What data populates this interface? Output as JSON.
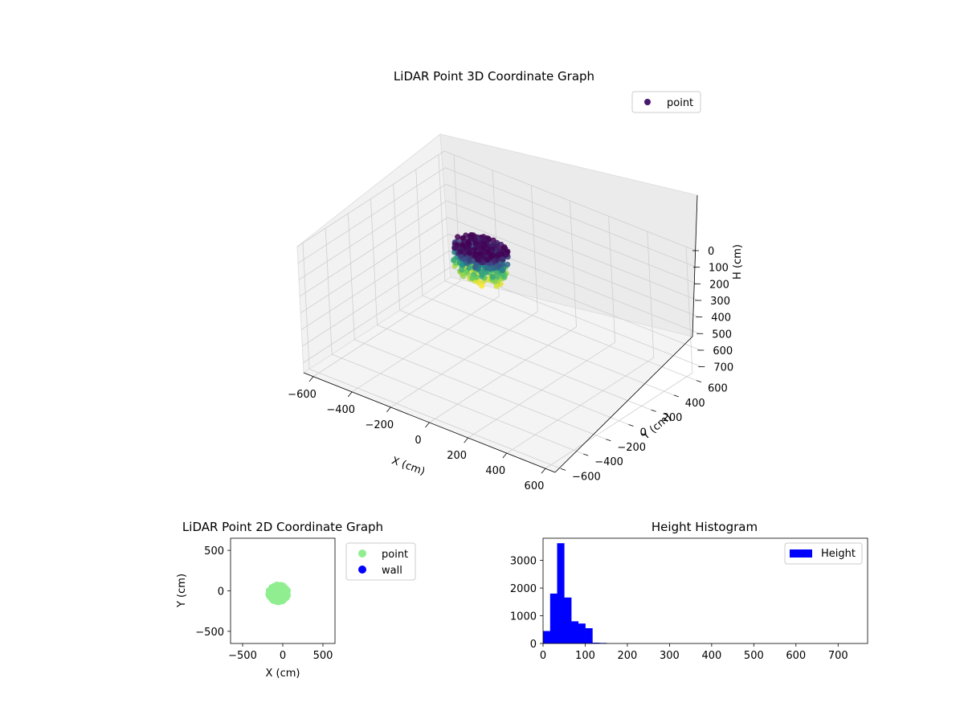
{
  "chart_data": [
    {
      "type": "scatter",
      "projection": "3d",
      "title": "LiDAR Point 3D Coordinate Graph",
      "xlabel": "X (cm)",
      "ylabel": "Y (cm)",
      "zlabel": "H (cm)",
      "xlim": [
        -650,
        650
      ],
      "ylim": [
        -650,
        650
      ],
      "zlim": [
        760,
        0
      ],
      "xticks": [
        -600,
        -400,
        -200,
        0,
        200,
        400,
        600
      ],
      "yticks": [
        -600,
        -400,
        -200,
        0,
        200,
        400,
        600
      ],
      "zticks": [
        0,
        100,
        200,
        300,
        400,
        500,
        600,
        700
      ],
      "z_inverted": true,
      "grid": true,
      "legend": {
        "position": "top-right",
        "entries": [
          "point"
        ]
      },
      "colormap": "viridis",
      "series": [
        {
          "name": "point",
          "cluster": {
            "x_center": -60,
            "x_extent": 260,
            "y_center": -40,
            "y_extent": 230,
            "h_min": 0,
            "h_max": 170
          }
        }
      ]
    },
    {
      "type": "scatter",
      "title": "LiDAR Point 2D Coordinate Graph",
      "xlabel": "X (cm)",
      "ylabel": "Y (cm)",
      "xlim": [
        -650,
        650
      ],
      "ylim": [
        -650,
        650
      ],
      "xticks": [
        -500,
        0,
        500
      ],
      "yticks": [
        -500,
        0,
        500
      ],
      "legend": {
        "position": "outside-right",
        "entries": [
          "point",
          "wall"
        ]
      },
      "series": [
        {
          "name": "point",
          "color": "#90ee90",
          "cluster": {
            "x_center": -55,
            "x_extent": 260,
            "y_center": -30,
            "y_extent": 230
          }
        },
        {
          "name": "wall",
          "color": "#0000ff",
          "count": 0
        }
      ]
    },
    {
      "type": "bar",
      "subtype": "histogram",
      "title": "Height Histogram",
      "xlim": [
        0,
        770
      ],
      "ylim": [
        0,
        3800
      ],
      "xticks": [
        0,
        100,
        200,
        300,
        400,
        500,
        600,
        700
      ],
      "yticks": [
        0,
        1000,
        2000,
        3000
      ],
      "legend": {
        "position": "top-right",
        "entries": [
          "Height"
        ]
      },
      "color": "#0000ff",
      "bin_width": 16.7,
      "bins_start": [
        0,
        16.7,
        33.4,
        50.1,
        66.8,
        83.5,
        100.2,
        116.9,
        133.6,
        150.3,
        167,
        183.7
      ],
      "series": [
        {
          "name": "Height",
          "values": [
            450,
            1800,
            3620,
            1660,
            800,
            720,
            550,
            30,
            20,
            0,
            0,
            0
          ]
        }
      ]
    }
  ]
}
